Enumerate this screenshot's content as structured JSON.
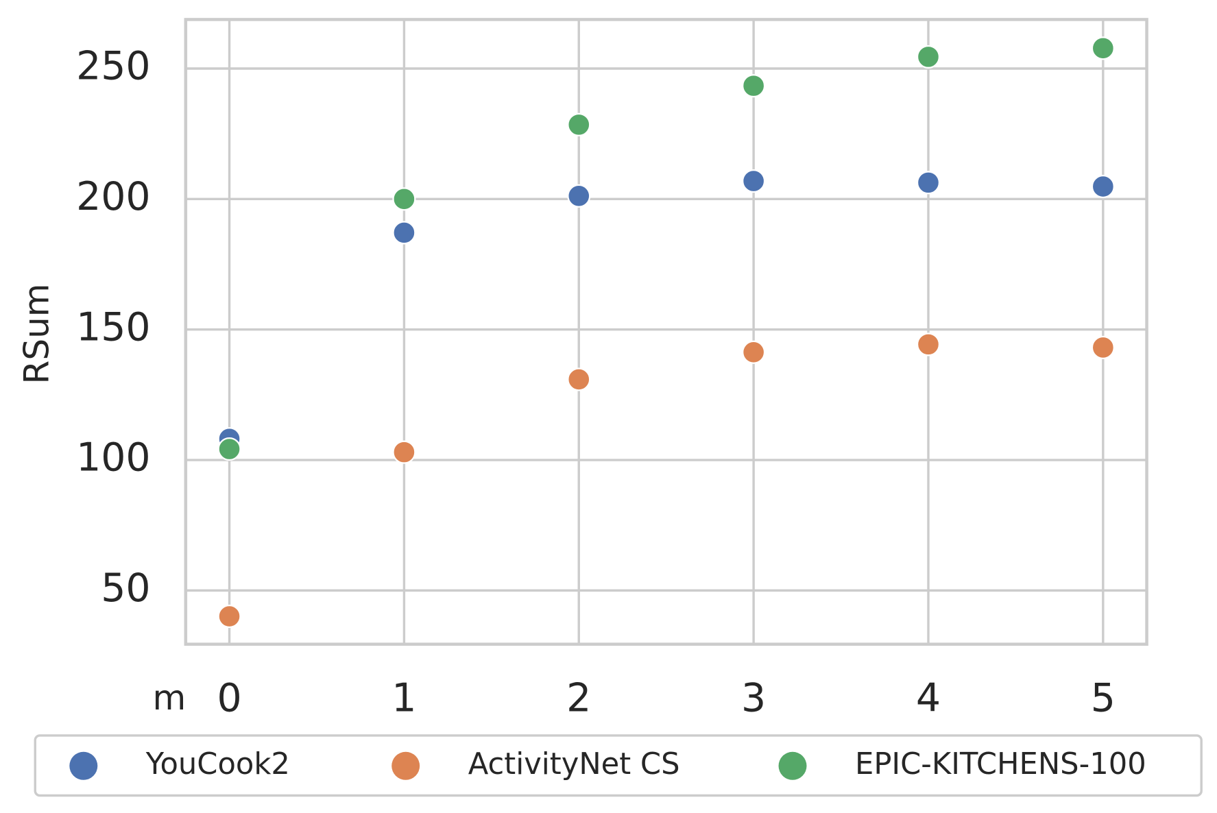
{
  "chart_data": {
    "type": "scatter",
    "xlabel": "m",
    "ylabel": "RSum",
    "series": [
      {
        "name": "YouCook2",
        "color": "#4c72b0",
        "x": [
          0,
          1,
          2,
          3,
          4,
          5
        ],
        "values": [
          108.1,
          187.1,
          201.2,
          206.9,
          206.3,
          204.8
        ]
      },
      {
        "name": "ActivityNet CS",
        "color": "#dd8452",
        "x": [
          0,
          1,
          2,
          3,
          4,
          5
        ],
        "values": [
          40.1,
          103.0,
          130.9,
          141.3,
          144.3,
          143.1
        ]
      },
      {
        "name": "EPIC-KITCHENS-100",
        "color": "#55a868",
        "x": [
          0,
          1,
          2,
          3,
          4,
          5
        ],
        "values": [
          104.2,
          200.0,
          228.5,
          243.4,
          254.5,
          257.8
        ]
      }
    ],
    "xlim": [
      -0.25,
      5.25
    ],
    "xticks": [
      0,
      1,
      2,
      3,
      4,
      5
    ],
    "ylim": [
      29.4,
      268.8
    ],
    "yticks": [
      50,
      100,
      150,
      200,
      250
    ],
    "grid": true,
    "legend_loc": "below"
  }
}
